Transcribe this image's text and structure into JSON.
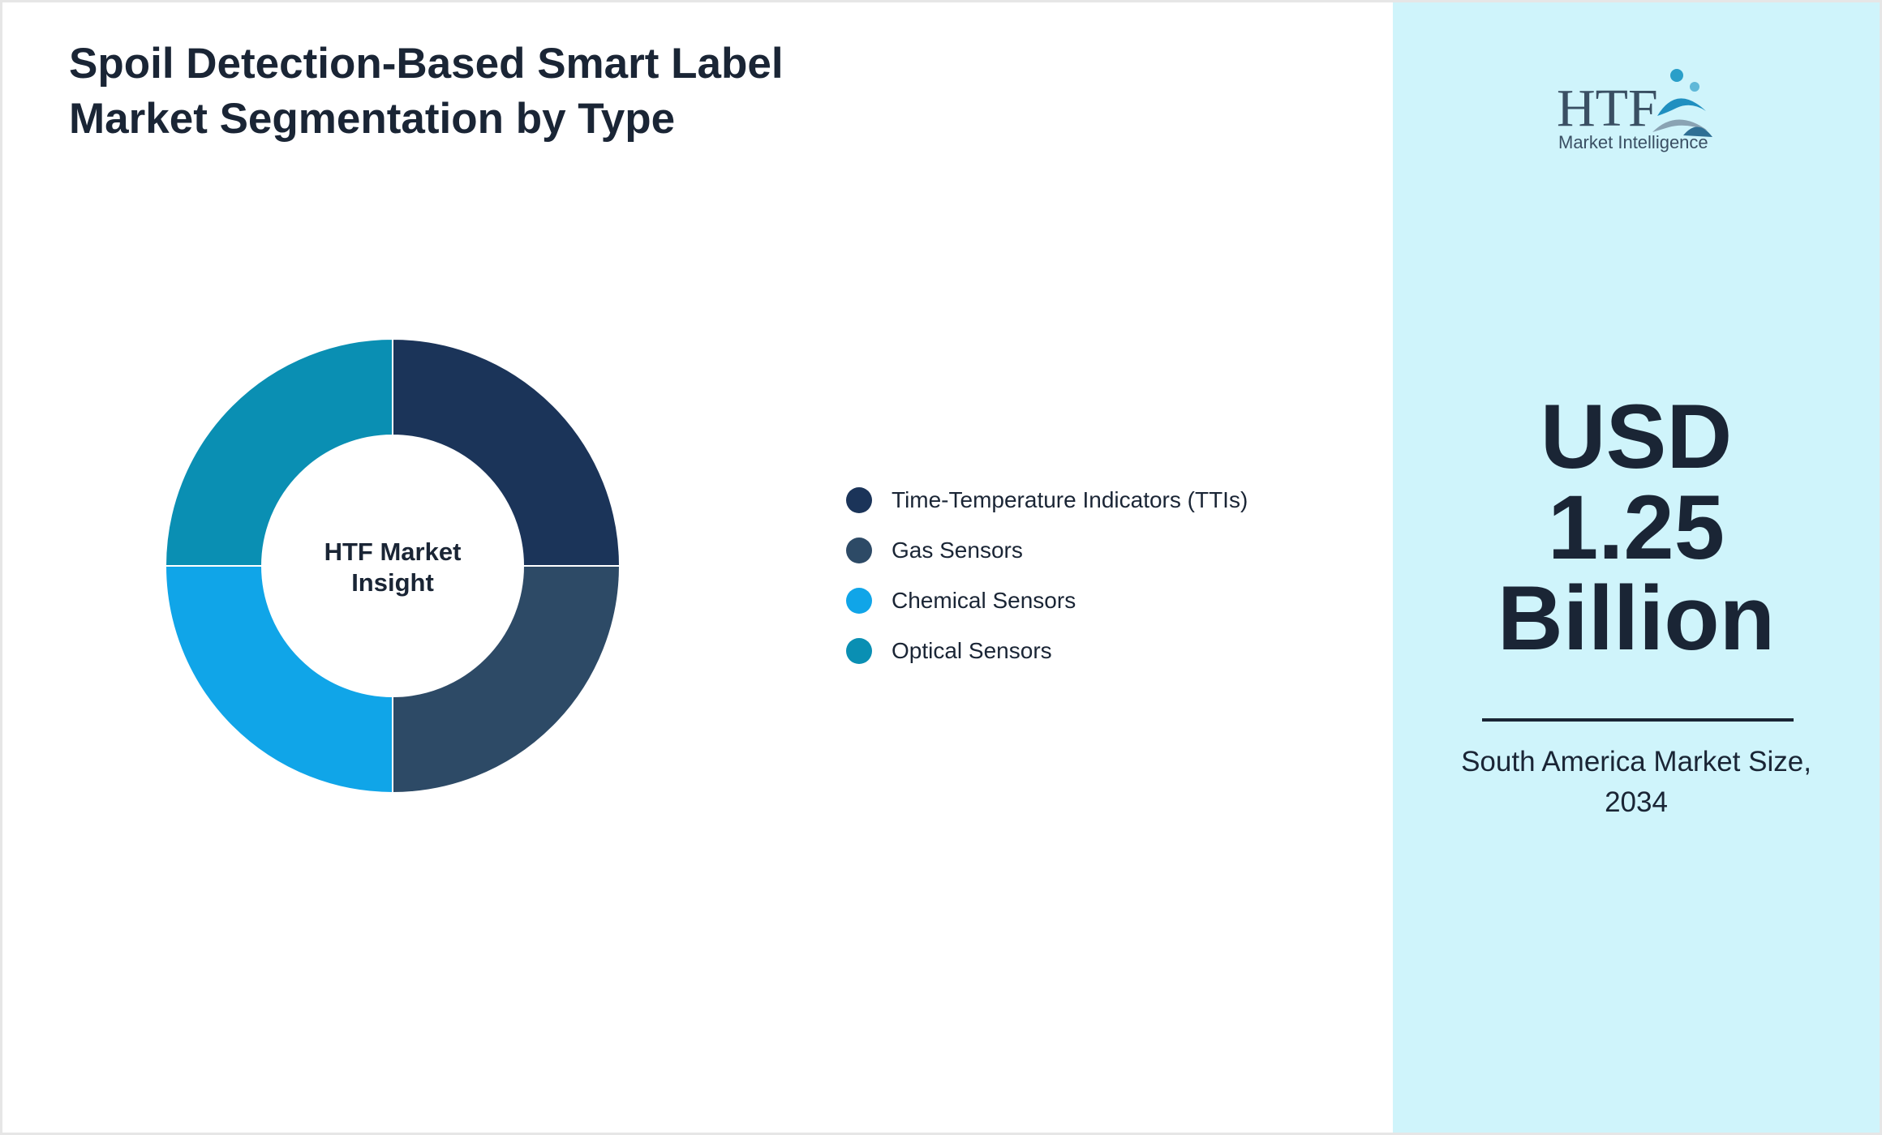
{
  "title": {
    "line1": "Spoil Detection-Based Smart Label",
    "line2": "Market Segmentation by Type"
  },
  "chart_data": {
    "type": "pie",
    "style": "donut",
    "center_label_lines": [
      "HTF Market",
      "Insight"
    ],
    "categories": [
      "Time-Temperature Indicators (TTIs)",
      "Gas Sensors",
      "Chemical Sensors",
      "Optical Sensors"
    ],
    "values": [
      25,
      25,
      25,
      25
    ],
    "colors": [
      "#1b3459",
      "#2d4a66",
      "#10a5e8",
      "#0a8fb3"
    ],
    "legend_position": "right"
  },
  "logo": {
    "mark": "HTF",
    "tagline": "Market Intelligence",
    "icon": "htf-logo-icon"
  },
  "highlight": {
    "value_lines": [
      "USD",
      "1.25",
      "Billion"
    ],
    "caption_line1": "South America Market Size,",
    "caption_line2": "2034"
  }
}
